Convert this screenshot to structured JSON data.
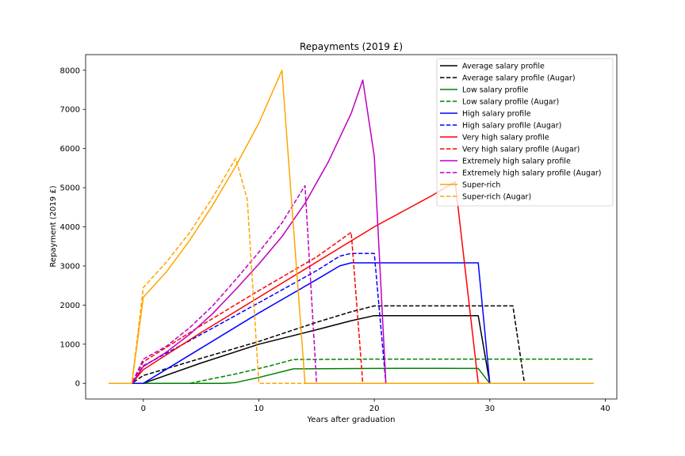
{
  "chart_data": {
    "type": "line",
    "title": "Repayments (2019 £)",
    "xlabel": "Years after graduation",
    "ylabel": "Repayment (2019 £)",
    "xlim": [
      -5.0,
      41.0
    ],
    "ylim": [
      -400,
      8400
    ],
    "xticks": [
      0,
      10,
      20,
      30,
      40
    ],
    "yticks": [
      0,
      1000,
      2000,
      3000,
      4000,
      5000,
      6000,
      7000,
      8000
    ],
    "grid": false,
    "legend_position": "top-right",
    "series": [
      {
        "name": "Average salary profile",
        "color": "#000000",
        "dash": "solid",
        "points": [
          [
            -3,
            0
          ],
          [
            -1,
            0
          ],
          [
            0,
            0
          ],
          [
            5,
            520
          ],
          [
            10,
            1000
          ],
          [
            15,
            1370
          ],
          [
            18,
            1600
          ],
          [
            20,
            1730
          ],
          [
            22,
            1730
          ],
          [
            29,
            1730
          ],
          [
            30,
            0
          ],
          [
            39,
            0
          ]
        ]
      },
      {
        "name": "Average salary profile (Augar)",
        "color": "#000000",
        "dash": "dashed",
        "points": [
          [
            -3,
            0
          ],
          [
            -1,
            0
          ],
          [
            0,
            200
          ],
          [
            5,
            640
          ],
          [
            10,
            1070
          ],
          [
            15,
            1560
          ],
          [
            18,
            1830
          ],
          [
            20,
            1980
          ],
          [
            25,
            1980
          ],
          [
            32,
            1980
          ],
          [
            33,
            0
          ],
          [
            39,
            0
          ]
        ]
      },
      {
        "name": "Low salary profile",
        "color": "#008000",
        "dash": "solid",
        "points": [
          [
            -3,
            0
          ],
          [
            -1,
            0
          ],
          [
            7,
            0
          ],
          [
            8,
            20
          ],
          [
            10,
            150
          ],
          [
            13,
            370
          ],
          [
            20,
            380
          ],
          [
            25,
            385
          ],
          [
            29,
            380
          ],
          [
            30,
            0
          ],
          [
            39,
            0
          ]
        ]
      },
      {
        "name": "Low salary profile (Augar)",
        "color": "#008000",
        "dash": "dashed",
        "points": [
          [
            -3,
            0
          ],
          [
            -1,
            0
          ],
          [
            4,
            0
          ],
          [
            8,
            240
          ],
          [
            11,
            450
          ],
          [
            13,
            610
          ],
          [
            20,
            620
          ],
          [
            30,
            620
          ],
          [
            39,
            620
          ]
        ]
      },
      {
        "name": "High salary profile",
        "color": "#0000ff",
        "dash": "solid",
        "points": [
          [
            -3,
            0
          ],
          [
            -1,
            0
          ],
          [
            0,
            0
          ],
          [
            5,
            900
          ],
          [
            10,
            1800
          ],
          [
            15,
            2650
          ],
          [
            17,
            3000
          ],
          [
            18,
            3080
          ],
          [
            22,
            3080
          ],
          [
            29,
            3080
          ],
          [
            30,
            0
          ],
          [
            39,
            0
          ]
        ]
      },
      {
        "name": "High salary profile (Augar)",
        "color": "#0000ff",
        "dash": "dashed",
        "points": [
          [
            -3,
            0
          ],
          [
            -1,
            0
          ],
          [
            0,
            450
          ],
          [
            5,
            1250
          ],
          [
            10,
            2060
          ],
          [
            15,
            2880
          ],
          [
            17,
            3250
          ],
          [
            18,
            3320
          ],
          [
            20,
            3320
          ],
          [
            21,
            0
          ],
          [
            39,
            0
          ]
        ]
      },
      {
        "name": "Very high salary profile",
        "color": "#ff0000",
        "dash": "solid",
        "points": [
          [
            -3,
            0
          ],
          [
            -1,
            0
          ],
          [
            0,
            350
          ],
          [
            5,
            1300
          ],
          [
            10,
            2200
          ],
          [
            15,
            3100
          ],
          [
            20,
            4000
          ],
          [
            25,
            4800
          ],
          [
            27,
            5150
          ],
          [
            29,
            0
          ],
          [
            39,
            0
          ]
        ]
      },
      {
        "name": "Very high salary profile (Augar)",
        "color": "#ff0000",
        "dash": "dashed",
        "points": [
          [
            -3,
            0
          ],
          [
            -1,
            0
          ],
          [
            0,
            550
          ],
          [
            5,
            1480
          ],
          [
            10,
            2370
          ],
          [
            15,
            3230
          ],
          [
            18,
            3860
          ],
          [
            19,
            0
          ],
          [
            39,
            0
          ]
        ]
      },
      {
        "name": "Extremely high salary profile",
        "color": "#bf00bf",
        "dash": "solid",
        "points": [
          [
            -3,
            0
          ],
          [
            -1,
            0
          ],
          [
            0,
            430
          ],
          [
            2,
            800
          ],
          [
            4,
            1250
          ],
          [
            6,
            1780
          ],
          [
            8,
            2400
          ],
          [
            10,
            3050
          ],
          [
            12,
            3750
          ],
          [
            14,
            4600
          ],
          [
            16,
            5650
          ],
          [
            18,
            6900
          ],
          [
            19,
            7750
          ],
          [
            20,
            5800
          ],
          [
            21,
            0
          ],
          [
            39,
            0
          ]
        ]
      },
      {
        "name": "Extremely high salary profile (Augar)",
        "color": "#bf00bf",
        "dash": "dashed",
        "points": [
          [
            -3,
            0
          ],
          [
            -1,
            0
          ],
          [
            0,
            620
          ],
          [
            2,
            950
          ],
          [
            4,
            1420
          ],
          [
            6,
            1980
          ],
          [
            8,
            2650
          ],
          [
            10,
            3350
          ],
          [
            12,
            4100
          ],
          [
            14,
            5050
          ],
          [
            15,
            0
          ],
          [
            39,
            0
          ]
        ]
      },
      {
        "name": "Super-rich",
        "color": "#ffa500",
        "dash": "solid",
        "points": [
          [
            -3,
            0
          ],
          [
            -1,
            0
          ],
          [
            0,
            2200
          ],
          [
            2,
            2850
          ],
          [
            4,
            3650
          ],
          [
            6,
            4550
          ],
          [
            8,
            5550
          ],
          [
            10,
            6650
          ],
          [
            12,
            8000
          ],
          [
            14,
            0
          ],
          [
            39,
            0
          ]
        ]
      },
      {
        "name": "Super-rich (Augar)",
        "color": "#ffa500",
        "dash": "dashed",
        "points": [
          [
            -3,
            0
          ],
          [
            -1,
            0
          ],
          [
            0,
            2450
          ],
          [
            2,
            3100
          ],
          [
            4,
            3850
          ],
          [
            6,
            4750
          ],
          [
            8,
            5750
          ],
          [
            9,
            4700
          ],
          [
            10,
            0
          ],
          [
            39,
            0
          ]
        ]
      }
    ]
  }
}
